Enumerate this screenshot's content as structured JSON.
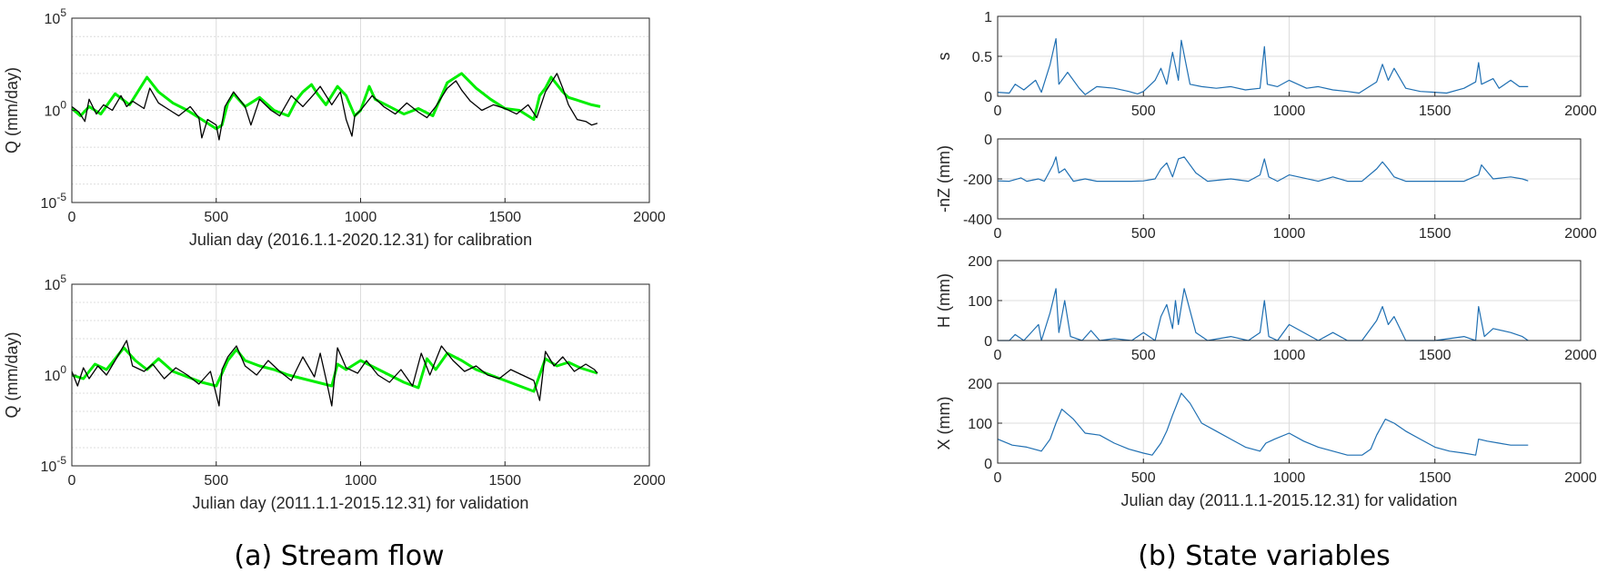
{
  "captions": {
    "left": "(a) Stream flow",
    "right": "(b) State variables"
  },
  "colors": {
    "observed": "#000000",
    "simulated": "#00ee00",
    "state": "#1f6fb2",
    "grid": "#dcdcdc",
    "axis": "#262626"
  },
  "chart_data": [
    {
      "id": "calib",
      "type": "line",
      "ylabel": "Q (mm/day)",
      "xlabel": "Julian day (2016.1.1-2020.12.31) for calibration",
      "xlim": [
        0,
        2000
      ],
      "ylim": [
        -5,
        5
      ],
      "yscale": "log",
      "grid": true,
      "xticks": [
        "0",
        "500",
        "1000",
        "1500",
        "2000"
      ],
      "yticks": [
        {
          "v": 5,
          "base": "10",
          "exp": "5"
        },
        {
          "v": 0,
          "base": "10",
          "exp": "0"
        },
        {
          "v": -5,
          "base": "10",
          "exp": "-5"
        }
      ],
      "series": [
        {
          "role": "simulated",
          "x": [
            0,
            30,
            60,
            100,
            150,
            200,
            260,
            300,
            350,
            400,
            450,
            480,
            500,
            520,
            540,
            560,
            600,
            650,
            700,
            750,
            780,
            800,
            830,
            850,
            880,
            920,
            950,
            980,
            1000,
            1030,
            1050,
            1100,
            1150,
            1200,
            1250,
            1300,
            1350,
            1400,
            1450,
            1500,
            1550,
            1600,
            1620,
            1640,
            1660,
            1680,
            1700,
            1720,
            1760,
            1800,
            1830
          ],
          "y": [
            0.1,
            -0.3,
            0.2,
            -0.2,
            0.9,
            0.3,
            1.8,
            1.0,
            0.4,
            0.0,
            -0.5,
            -0.8,
            -1.0,
            -0.8,
            0.4,
            0.9,
            0.2,
            0.7,
            0.0,
            -0.3,
            0.6,
            1.0,
            1.4,
            0.9,
            0.3,
            1.3,
            0.8,
            -0.3,
            0.0,
            1.3,
            0.6,
            0.2,
            -0.2,
            0.1,
            -0.3,
            1.5,
            2.0,
            1.2,
            0.6,
            0.1,
            0.0,
            -0.5,
            0.8,
            1.2,
            1.8,
            1.4,
            1.0,
            0.7,
            0.5,
            0.3,
            0.2
          ]
        },
        {
          "role": "observed",
          "x": [
            0,
            25,
            45,
            60,
            85,
            110,
            140,
            170,
            190,
            210,
            250,
            270,
            300,
            340,
            370,
            410,
            440,
            450,
            470,
            500,
            510,
            530,
            560,
            600,
            620,
            650,
            690,
            720,
            760,
            800,
            840,
            860,
            900,
            930,
            950,
            970,
            980,
            1000,
            1040,
            1080,
            1120,
            1160,
            1200,
            1230,
            1260,
            1300,
            1330,
            1350,
            1380,
            1420,
            1460,
            1500,
            1540,
            1580,
            1610,
            1640,
            1660,
            1680,
            1700,
            1720,
            1750,
            1780,
            1800,
            1820
          ],
          "y": [
            0.2,
            -0.1,
            -0.6,
            0.6,
            -0.2,
            0.3,
            0.0,
            0.8,
            0.2,
            0.5,
            0.1,
            1.2,
            0.4,
            0.0,
            -0.3,
            0.2,
            -0.4,
            -1.5,
            -0.5,
            -0.8,
            -1.6,
            0.2,
            1.0,
            0.2,
            -0.8,
            0.6,
            0.0,
            -0.3,
            0.8,
            0.2,
            0.9,
            1.3,
            0.3,
            1.0,
            -0.5,
            -1.4,
            -0.3,
            0.0,
            0.8,
            0.2,
            -0.2,
            0.4,
            -0.1,
            -0.4,
            0.2,
            1.2,
            1.6,
            1.1,
            0.5,
            0.0,
            0.3,
            0.1,
            -0.2,
            0.3,
            -0.4,
            1.0,
            1.5,
            2.0,
            1.2,
            0.3,
            -0.5,
            -0.6,
            -0.8,
            -0.7
          ]
        }
      ]
    },
    {
      "id": "valid",
      "type": "line",
      "ylabel": "Q (mm/day)",
      "xlabel": "Julian day (2011.1.1-2015.12.31) for validation",
      "xlim": [
        0,
        2000
      ],
      "ylim": [
        -5,
        5
      ],
      "yscale": "log",
      "grid": true,
      "xticks": [
        "0",
        "500",
        "1000",
        "1500",
        "2000"
      ],
      "yticks": [
        {
          "v": 5,
          "base": "10",
          "exp": "5"
        },
        {
          "v": 0,
          "base": "10",
          "exp": "0"
        },
        {
          "v": -5,
          "base": "10",
          "exp": "-5"
        }
      ],
      "series": [
        {
          "role": "simulated",
          "x": [
            0,
            40,
            80,
            120,
            180,
            220,
            260,
            300,
            350,
            400,
            450,
            500,
            540,
            570,
            600,
            650,
            700,
            750,
            800,
            850,
            900,
            920,
            950,
            1000,
            1050,
            1100,
            1150,
            1200,
            1230,
            1260,
            1300,
            1350,
            1400,
            1450,
            1500,
            1550,
            1600,
            1640,
            1680,
            1720,
            1760,
            1800,
            1820
          ],
          "y": [
            0.0,
            -0.2,
            0.6,
            0.3,
            1.5,
            0.8,
            0.3,
            0.9,
            0.2,
            -0.1,
            -0.4,
            -0.6,
            0.8,
            1.4,
            0.8,
            0.5,
            0.3,
            0.0,
            -0.2,
            -0.4,
            -0.6,
            0.6,
            0.3,
            0.8,
            0.4,
            0.0,
            -0.4,
            -0.7,
            0.9,
            0.3,
            1.2,
            0.8,
            0.3,
            0.0,
            -0.3,
            -0.6,
            -0.9,
            0.9,
            0.5,
            0.7,
            0.4,
            0.2,
            0.1
          ]
        },
        {
          "role": "observed",
          "x": [
            0,
            20,
            40,
            60,
            90,
            120,
            150,
            190,
            210,
            250,
            280,
            320,
            360,
            400,
            440,
            480,
            510,
            520,
            540,
            570,
            600,
            640,
            680,
            720,
            760,
            800,
            840,
            860,
            880,
            900,
            920,
            950,
            990,
            1020,
            1060,
            1100,
            1140,
            1180,
            1210,
            1240,
            1280,
            1320,
            1360,
            1400,
            1440,
            1480,
            1520,
            1560,
            1600,
            1620,
            1640,
            1670,
            1700,
            1740,
            1780,
            1810,
            1820
          ],
          "y": [
            0.2,
            -0.6,
            0.4,
            -0.2,
            0.5,
            0.0,
            0.8,
            1.9,
            0.5,
            0.2,
            0.6,
            -0.2,
            0.4,
            0.0,
            -0.5,
            0.2,
            -1.7,
            0.3,
            1.0,
            1.6,
            0.5,
            0.0,
            0.8,
            0.2,
            -0.3,
            1.0,
            -0.1,
            1.2,
            -0.2,
            -1.7,
            1.5,
            0.4,
            0.1,
            0.8,
            0.0,
            -0.4,
            0.3,
            -0.6,
            1.2,
            0.0,
            1.6,
            0.8,
            0.2,
            0.5,
            0.0,
            -0.2,
            0.3,
            0.0,
            -0.3,
            -1.4,
            1.3,
            0.5,
            1.0,
            0.2,
            0.6,
            0.3,
            0.1
          ]
        }
      ]
    },
    {
      "id": "s",
      "type": "line",
      "ylabel": "s",
      "xlabel": "",
      "xlim": [
        0,
        2000
      ],
      "ylim": [
        0,
        1
      ],
      "grid": true,
      "xticks": [
        "0",
        "500",
        "1000",
        "1500",
        "2000"
      ],
      "yticks": [
        {
          "v": 1,
          "t": "1"
        },
        {
          "v": 0.5,
          "t": "0.5"
        },
        {
          "v": 0,
          "t": "0"
        }
      ],
      "series": [
        {
          "role": "state",
          "x": [
            0,
            40,
            60,
            90,
            130,
            150,
            180,
            200,
            210,
            240,
            280,
            300,
            340,
            400,
            450,
            480,
            500,
            540,
            560,
            580,
            600,
            620,
            630,
            660,
            700,
            750,
            800,
            850,
            900,
            915,
            925,
            960,
            1000,
            1060,
            1100,
            1150,
            1200,
            1240,
            1300,
            1320,
            1340,
            1360,
            1400,
            1450,
            1500,
            1540,
            1600,
            1640,
            1650,
            1660,
            1700,
            1720,
            1760,
            1790,
            1820
          ],
          "y": [
            0.05,
            0.04,
            0.15,
            0.08,
            0.2,
            0.05,
            0.4,
            0.72,
            0.15,
            0.3,
            0.1,
            0.02,
            0.12,
            0.1,
            0.06,
            0.03,
            0.06,
            0.2,
            0.35,
            0.15,
            0.55,
            0.2,
            0.7,
            0.15,
            0.12,
            0.1,
            0.12,
            0.08,
            0.1,
            0.62,
            0.15,
            0.12,
            0.2,
            0.1,
            0.12,
            0.08,
            0.06,
            0.04,
            0.18,
            0.4,
            0.2,
            0.35,
            0.1,
            0.06,
            0.05,
            0.04,
            0.1,
            0.18,
            0.42,
            0.15,
            0.22,
            0.1,
            0.2,
            0.12,
            0.12
          ]
        }
      ]
    },
    {
      "id": "nz",
      "type": "line",
      "ylabel": "-nZ (mm)",
      "xlabel": "",
      "xlim": [
        0,
        2000
      ],
      "ylim": [
        -400,
        0
      ],
      "grid": true,
      "xticks": [
        "0",
        "500",
        "1000",
        "1500",
        "2000"
      ],
      "yticks": [
        {
          "v": 0,
          "t": "0"
        },
        {
          "v": -200,
          "t": "-200"
        },
        {
          "v": -400,
          "t": "-400"
        }
      ],
      "series": [
        {
          "role": "state",
          "x": [
            0,
            40,
            80,
            100,
            140,
            160,
            190,
            200,
            210,
            230,
            260,
            300,
            340,
            400,
            460,
            500,
            540,
            560,
            580,
            600,
            620,
            640,
            680,
            720,
            800,
            860,
            900,
            915,
            930,
            960,
            1000,
            1100,
            1150,
            1200,
            1250,
            1300,
            1320,
            1340,
            1360,
            1400,
            1500,
            1600,
            1650,
            1660,
            1700,
            1760,
            1800,
            1820
          ],
          "y": [
            -210,
            -212,
            -195,
            -212,
            -200,
            -212,
            -130,
            -90,
            -170,
            -150,
            -212,
            -200,
            -212,
            -212,
            -212,
            -210,
            -200,
            -150,
            -120,
            -190,
            -100,
            -90,
            -170,
            -212,
            -200,
            -212,
            -180,
            -100,
            -190,
            -212,
            -180,
            -212,
            -190,
            -212,
            -212,
            -150,
            -115,
            -150,
            -190,
            -212,
            -212,
            -212,
            -180,
            -130,
            -200,
            -190,
            -200,
            -210
          ]
        }
      ]
    },
    {
      "id": "h",
      "type": "line",
      "ylabel": "H (mm)",
      "xlabel": "",
      "xlim": [
        0,
        2000
      ],
      "ylim": [
        0,
        200
      ],
      "grid": true,
      "xticks": [
        "0",
        "500",
        "1000",
        "1500",
        "2000"
      ],
      "yticks": [
        {
          "v": 200,
          "t": "200"
        },
        {
          "v": 100,
          "t": "100"
        },
        {
          "v": 0,
          "t": "0"
        }
      ],
      "series": [
        {
          "role": "state",
          "x": [
            0,
            40,
            60,
            90,
            140,
            150,
            180,
            200,
            210,
            230,
            250,
            290,
            320,
            350,
            400,
            460,
            500,
            540,
            560,
            580,
            600,
            610,
            620,
            640,
            680,
            720,
            800,
            860,
            900,
            915,
            930,
            960,
            1000,
            1100,
            1150,
            1200,
            1250,
            1300,
            1320,
            1340,
            1360,
            1400,
            1500,
            1600,
            1640,
            1650,
            1670,
            1700,
            1760,
            1800,
            1820
          ],
          "y": [
            0,
            0,
            15,
            0,
            40,
            0,
            70,
            130,
            20,
            100,
            10,
            0,
            25,
            0,
            5,
            0,
            20,
            0,
            60,
            90,
            30,
            100,
            40,
            130,
            20,
            0,
            10,
            0,
            20,
            100,
            10,
            0,
            40,
            0,
            20,
            0,
            0,
            50,
            85,
            40,
            60,
            0,
            0,
            10,
            0,
            85,
            10,
            30,
            20,
            10,
            0
          ]
        }
      ]
    },
    {
      "id": "x",
      "type": "line",
      "ylabel": "X (mm)",
      "xlabel": "Julian day (2011.1.1-2015.12.31) for validation",
      "xlim": [
        0,
        2000
      ],
      "ylim": [
        0,
        200
      ],
      "grid": true,
      "xticks": [
        "0",
        "500",
        "1000",
        "1500",
        "2000"
      ],
      "yticks": [
        {
          "v": 200,
          "t": "200"
        },
        {
          "v": 100,
          "t": "100"
        },
        {
          "v": 0,
          "t": "0"
        }
      ],
      "series": [
        {
          "role": "state",
          "x": [
            0,
            50,
            100,
            150,
            180,
            200,
            220,
            260,
            300,
            350,
            400,
            450,
            500,
            530,
            560,
            580,
            600,
            630,
            660,
            700,
            750,
            800,
            850,
            900,
            920,
            950,
            1000,
            1050,
            1100,
            1150,
            1200,
            1250,
            1280,
            1300,
            1330,
            1360,
            1400,
            1450,
            1500,
            1550,
            1600,
            1640,
            1650,
            1680,
            1720,
            1760,
            1800,
            1820
          ],
          "y": [
            60,
            45,
            40,
            30,
            60,
            100,
            135,
            110,
            75,
            70,
            50,
            35,
            25,
            20,
            50,
            80,
            120,
            175,
            150,
            100,
            80,
            60,
            40,
            30,
            50,
            60,
            75,
            55,
            40,
            30,
            20,
            20,
            35,
            70,
            110,
            100,
            80,
            60,
            40,
            30,
            25,
            20,
            60,
            55,
            50,
            45,
            45,
            45
          ]
        }
      ]
    }
  ]
}
